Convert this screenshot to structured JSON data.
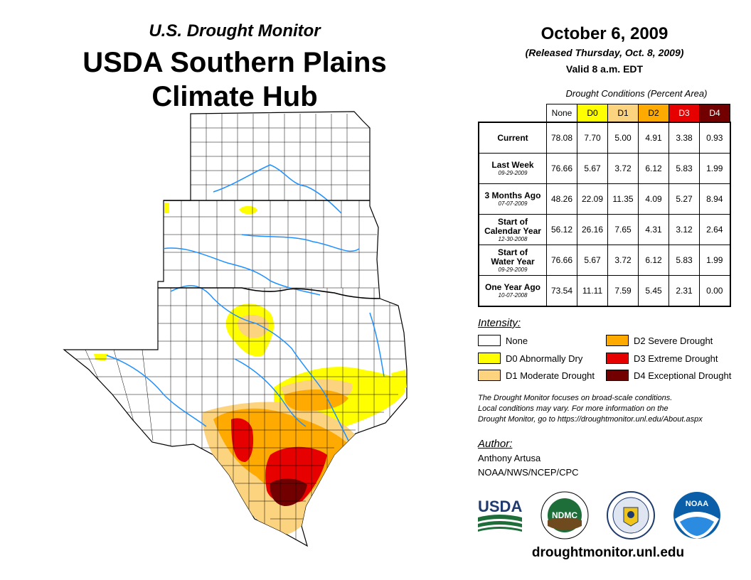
{
  "header": {
    "subtitle": "U.S. Drought Monitor",
    "title_line1": "USDA Southern Plains",
    "title_line2": "Climate Hub"
  },
  "date_block": {
    "date": "October 6, 2009",
    "released": "(Released Thursday, Oct. 8, 2009)",
    "valid": "Valid 8 a.m. EDT"
  },
  "conditions": {
    "title": "Drought Conditions (Percent Area)",
    "columns": [
      {
        "label": "None",
        "color": "#ffffff"
      },
      {
        "label": "D0",
        "color": "#ffff00"
      },
      {
        "label": "D1",
        "color": "#fcd37f"
      },
      {
        "label": "D2",
        "color": "#ffaa00"
      },
      {
        "label": "D3",
        "color": "#e60000"
      },
      {
        "label": "D4",
        "color": "#730000"
      }
    ],
    "rows": [
      {
        "label": "Current",
        "label2": "",
        "date": "",
        "values": [
          "78.08",
          "7.70",
          "5.00",
          "4.91",
          "3.38",
          "0.93"
        ]
      },
      {
        "label": "Last Week",
        "label2": "",
        "date": "09-29-2009",
        "values": [
          "76.66",
          "5.67",
          "3.72",
          "6.12",
          "5.83",
          "1.99"
        ]
      },
      {
        "label": "3 Months Ago",
        "label2": "",
        "date": "07-07-2009",
        "values": [
          "48.26",
          "22.09",
          "11.35",
          "4.09",
          "5.27",
          "8.94"
        ]
      },
      {
        "label": "Start of",
        "label2": "Calendar Year",
        "date": "12-30-2008",
        "values": [
          "56.12",
          "26.16",
          "7.65",
          "4.31",
          "3.12",
          "2.64"
        ]
      },
      {
        "label": "Start of",
        "label2": "Water Year",
        "date": "09-29-2009",
        "values": [
          "76.66",
          "5.67",
          "3.72",
          "6.12",
          "5.83",
          "1.99"
        ]
      },
      {
        "label": "One Year Ago",
        "label2": "",
        "date": "10-07-2008",
        "values": [
          "73.54",
          "11.11",
          "7.59",
          "5.45",
          "2.31",
          "0.00"
        ]
      }
    ]
  },
  "legend": {
    "title": "Intensity:",
    "items": [
      {
        "label": "None",
        "color": "#ffffff"
      },
      {
        "label": "D0 Abnormally Dry",
        "color": "#ffff00"
      },
      {
        "label": "D1 Moderate Drought",
        "color": "#fcd37f"
      },
      {
        "label": "D2 Severe Drought",
        "color": "#ffaa00"
      },
      {
        "label": "D3 Extreme Drought",
        "color": "#e60000"
      },
      {
        "label": "D4 Exceptional Drought",
        "color": "#730000"
      }
    ]
  },
  "note": {
    "line1": "The Drought Monitor focuses on broad-scale conditions.",
    "line2": "Local conditions may vary. For more information on the",
    "line3": "Drought Monitor, go to https://droughtmonitor.unl.edu/About.aspx"
  },
  "author": {
    "title": "Author:",
    "name": "Anthony Artusa",
    "org": "NOAA/NWS/NCEP/CPC"
  },
  "logos": {
    "usda": "USDA",
    "ndmc": "NDMC",
    "noaa": "NOAA"
  },
  "footer_url": "droughtmonitor.unl.edu",
  "map_colors": {
    "river": "#1e90ff",
    "border": "#000000"
  }
}
